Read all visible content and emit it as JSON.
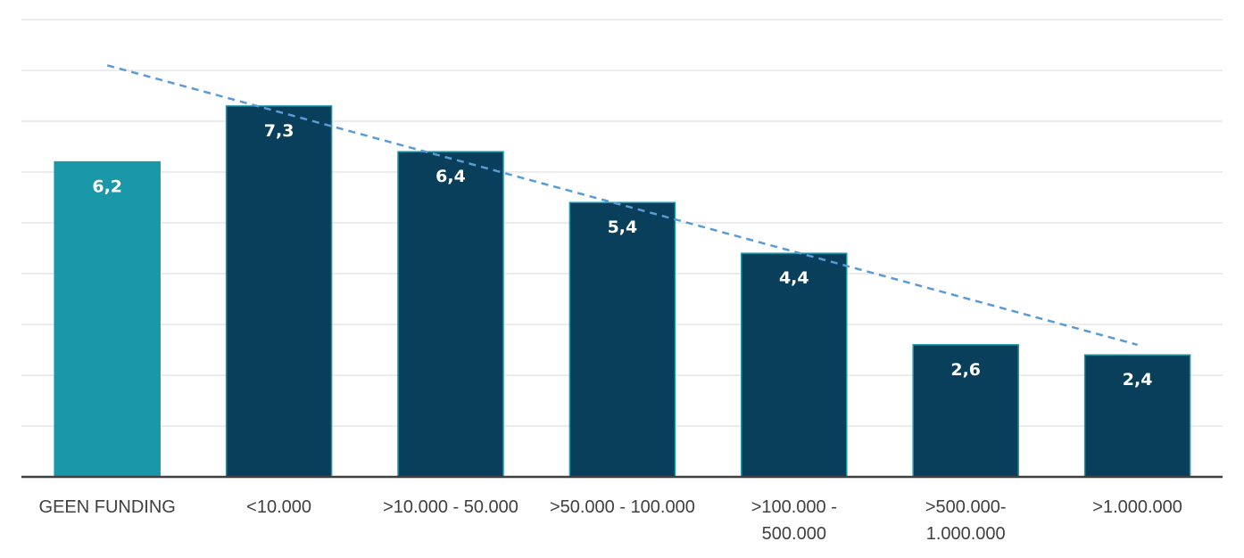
{
  "chart_data": {
    "type": "bar",
    "title": "",
    "xlabel": "",
    "ylabel": "",
    "ylim": [
      0,
      9
    ],
    "y_gridlines": [
      1,
      2,
      3,
      4,
      5,
      6,
      7,
      8,
      9
    ],
    "y_tick_labels_visible": false,
    "categories": [
      [
        "GEEN FUNDING"
      ],
      [
        "<10.000"
      ],
      [
        ">10.000 - 50.000"
      ],
      [
        ">50.000 - 100.000"
      ],
      [
        ">100.000 -",
        "500.000"
      ],
      [
        ">500.000-",
        "1.000.000"
      ],
      [
        ">1.000.000"
      ]
    ],
    "values": [
      6.2,
      7.3,
      6.4,
      5.4,
      4.4,
      2.6,
      2.4
    ],
    "value_labels": [
      "6,2",
      "7,3",
      "6,4",
      "5,4",
      "4,4",
      "2,6",
      "2,4"
    ],
    "bar_colors": [
      "#1a97a9",
      "#093f5b",
      "#093f5b",
      "#093f5b",
      "#093f5b",
      "#093f5b",
      "#093f5b"
    ],
    "bar_outline_color": "#1a97a9",
    "gridline_color": "#d9d9d9",
    "axis_color": "#404040",
    "trendline": {
      "type": "dashed",
      "color": "#5b9bd5",
      "start": {
        "category_index": 0,
        "y": 8.1
      },
      "end": {
        "category_index": 6,
        "y": 2.6
      }
    },
    "legend": "none"
  }
}
